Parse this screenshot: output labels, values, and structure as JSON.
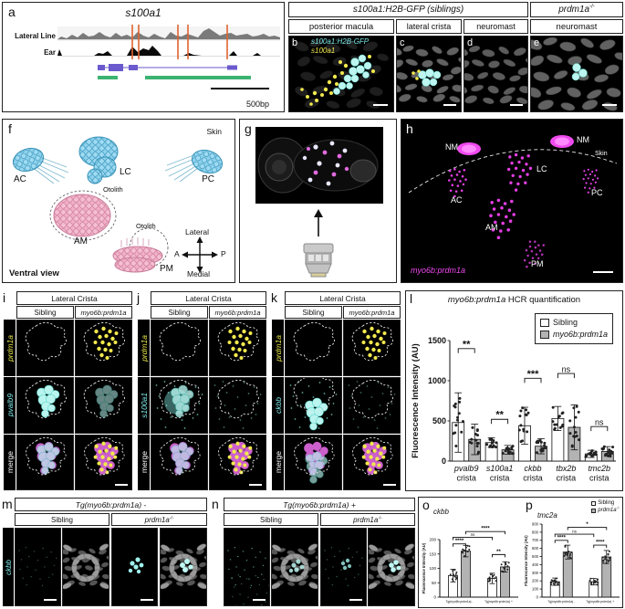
{
  "figure": {
    "panel_a": {
      "letter": "a",
      "title": "s100a1",
      "track1": "Lateral Line",
      "track2": "Ear",
      "scale": "500bp"
    },
    "panel_be": {
      "header_siblings": "s100a1:H2B-GFP (siblings)",
      "header_mut_base": "prdm1a",
      "header_mut_sup": "-/-",
      "sub_b": "posterior macula",
      "sub_c": "lateral crista",
      "sub_d": "neuromast",
      "sub_e": "neuromast",
      "letter_b": "b",
      "letter_c": "c",
      "letter_d": "d",
      "letter_e": "e",
      "b_label_gfp": "s100a1:H2B-GFP",
      "b_label_gene": "s100a1"
    },
    "panel_f": {
      "letter": "f",
      "skin": "Skin",
      "ac": "AC",
      "lc": "LC",
      "pc": "PC",
      "am": "AM",
      "pm": "PM",
      "otolith1": "Otolith",
      "otolith2": "Otolith",
      "compass": {
        "top": "Lateral",
        "bottom": "Medial",
        "left": "A",
        "right": "P"
      },
      "caption": "Ventral view"
    },
    "panel_g": {
      "letter": "g"
    },
    "panel_h": {
      "letter": "h",
      "nm1": "NM",
      "nm2": "NM",
      "skin": "Skin",
      "lc": "LC",
      "ac": "AC",
      "pc": "PC",
      "am": "AM",
      "pm": "PM",
      "tag": "myo6b:prdm1a"
    },
    "panel_i": {
      "letter": "i",
      "header": "Lateral Crista",
      "col1": "Sibling",
      "col2": "myo6b:prdm1a",
      "row1": "prdm1a",
      "row2": "pvalb9",
      "row3": "merge"
    },
    "panel_j": {
      "letter": "j",
      "header": "Lateral Crista",
      "col1": "Sibling",
      "col2": "myo6b:prdm1a",
      "row1": "prdm1a",
      "row2": "s100a1",
      "row3": "merge"
    },
    "panel_k": {
      "letter": "k",
      "header": "Lateral Crista",
      "col1": "Sibling",
      "col2": "myo6b:prdm1a",
      "row1": "prdm1a",
      "row2": "ckbb",
      "row3": "merge"
    },
    "panel_l": {
      "letter": "l"
    },
    "panel_m": {
      "letter": "m",
      "header": "Tg(myo6b:prdm1a) -",
      "col1": "Sibling",
      "col2_base": "prdm1a",
      "col2_sup": "-/-",
      "row_label": "ckbb"
    },
    "panel_n": {
      "letter": "n",
      "header": "Tg(myo6b:prdm1a) +",
      "col1": "Sibling",
      "col2_base": "prdm1a",
      "col2_sup": "-/-"
    },
    "panel_o": {
      "letter": "o"
    },
    "panel_p": {
      "letter": "p"
    }
  },
  "colors": {
    "gfp_cyan": "#9ff2ec",
    "hcr_yellow": "#f2e94e",
    "hcr_magenta": "#e24fe2",
    "bar_gray": "#b3b3b3",
    "bar_white": "#ffffff",
    "track_orange": "#e0632f",
    "gene_purple": "#6a5acd",
    "peak_green": "#3cb371"
  },
  "chart_data": [
    {
      "id": "l",
      "type": "bar",
      "title_italic": "myo6b:prdm1a",
      "title_rest": " HCR quantification",
      "ylabel": "Fluorescence Intensity (AU)",
      "ylim": [
        0,
        1500
      ],
      "yticks": [
        0,
        500,
        1000,
        1500
      ],
      "categories": [
        "pvalb9",
        "s100a1",
        "ckbb",
        "tbx2b",
        "tmc2b"
      ],
      "category_line2": "crista",
      "categories_italic": true,
      "series": [
        {
          "name": "Sibling",
          "fill": "#ffffff",
          "values": [
            480,
            230,
            440,
            530,
            90
          ],
          "errors": [
            370,
            60,
            230,
            150,
            45
          ]
        },
        {
          "name": "myo6b:prdm1a",
          "fill": "#b3b3b3",
          "values": [
            270,
            140,
            185,
            420,
            120
          ],
          "errors": [
            190,
            55,
            95,
            280,
            60
          ]
        }
      ],
      "significance": [
        {
          "a": 0,
          "b": 1,
          "label": "**",
          "y": 1400
        },
        {
          "a": 2,
          "b": 3,
          "label": "**",
          "y": 520
        },
        {
          "a": 4,
          "b": 5,
          "label": "***",
          "y": 1030
        },
        {
          "a": 6,
          "b": 7,
          "label": "ns",
          "y": 1090
        },
        {
          "a": 8,
          "b": 9,
          "label": "ns",
          "y": 430
        }
      ],
      "legend": [
        {
          "label": "Sibling",
          "italic": false
        },
        {
          "label": "myo6b:prdm1a",
          "italic": true
        }
      ]
    },
    {
      "id": "o",
      "type": "bar",
      "title_italic": "ckbb",
      "title_rest": "",
      "ylabel": "Fluorescence Intensity (AU)",
      "ylim": [
        0,
        200
      ],
      "yticks": [
        0,
        50,
        100,
        150,
        200
      ],
      "categories": [
        "Tg(myo6b:prdm1a) -",
        "Tg(myo6b:prdm1a) +"
      ],
      "series": [
        {
          "name": "Sibling",
          "fill": "#ffffff",
          "values": [
            75,
            65
          ],
          "errors": [
            22,
            18
          ]
        },
        {
          "name": "prdm1a-/-",
          "fill": "#b3b3b3",
          "values": [
            160,
            105
          ],
          "errors": [
            20,
            18
          ]
        }
      ],
      "significance": [
        {
          "a": 0,
          "b": 1,
          "label": "****",
          "y": 185
        },
        {
          "a": 2,
          "b": 3,
          "label": "**",
          "y": 148
        },
        {
          "a": 0,
          "b": 2,
          "label": "ns",
          "y": 208
        },
        {
          "a": 1,
          "b": 3,
          "label": "****",
          "y": 228
        }
      ]
    },
    {
      "id": "p",
      "type": "bar",
      "title_italic": "tmc2a",
      "title_rest": "",
      "ylabel": "Fluorescence Intensity (AU)",
      "ylim": [
        0,
        900
      ],
      "yticks": [
        0,
        100,
        200,
        300,
        400,
        500,
        600,
        700,
        800,
        900
      ],
      "categories": [
        "Tg(myo6b:prdm1a) -",
        "Tg(myo6b:prdm1a) +"
      ],
      "series": [
        {
          "name": "Sibling",
          "fill": "#ffffff",
          "values": [
            190,
            190
          ],
          "errors": [
            45,
            40
          ]
        },
        {
          "name": "prdm1a-/-",
          "fill": "#b3b3b3",
          "values": [
            555,
            495
          ],
          "errors": [
            85,
            80
          ]
        }
      ],
      "significance": [
        {
          "a": 0,
          "b": 1,
          "label": "****",
          "y": 700
        },
        {
          "a": 2,
          "b": 3,
          "label": "****",
          "y": 640
        },
        {
          "a": 0,
          "b": 2,
          "label": "ns",
          "y": 775
        },
        {
          "a": 1,
          "b": 3,
          "label": "*",
          "y": 860
        }
      ],
      "legend": [
        {
          "label": "Sibling",
          "sup": "",
          "italic": false
        },
        {
          "label": "prdm1a",
          "sup": "-/-",
          "italic": true
        }
      ]
    }
  ]
}
